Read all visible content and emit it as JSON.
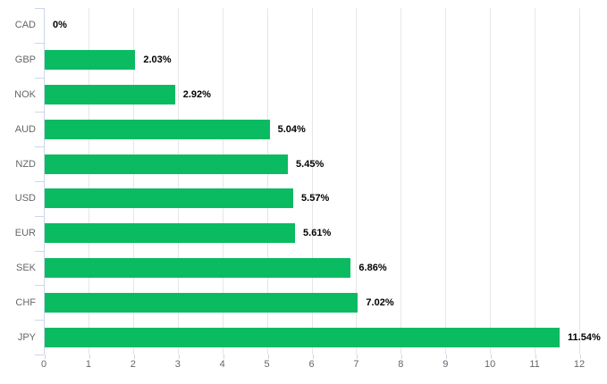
{
  "chart_data": {
    "type": "bar",
    "orientation": "horizontal",
    "title": "",
    "xlabel": "",
    "ylabel": "",
    "categories": [
      "CAD",
      "GBP",
      "NOK",
      "AUD",
      "NZD",
      "USD",
      "EUR",
      "SEK",
      "CHF",
      "JPY"
    ],
    "values": [
      0,
      2.03,
      2.92,
      5.04,
      5.45,
      5.57,
      5.61,
      6.86,
      7.02,
      11.54
    ],
    "data_labels": [
      "0%",
      "2.03%",
      "2.92%",
      "5.04%",
      "5.45%",
      "5.57%",
      "5.61%",
      "6.86%",
      "7.02%",
      "11.54%"
    ],
    "xlim": [
      0,
      12
    ],
    "xticks": [
      0,
      1,
      2,
      3,
      4,
      5,
      6,
      7,
      8,
      9,
      10,
      11,
      12
    ],
    "grid": true,
    "legend": false,
    "colors": {
      "bar": "#0abb62",
      "grid": "#e6e6e6",
      "axis": "#ccd6eb",
      "tick": "#ccd6eb",
      "axis_label": "#666666",
      "category_label": "#666666",
      "data_label": "#000000",
      "background": "#ffffff"
    }
  }
}
